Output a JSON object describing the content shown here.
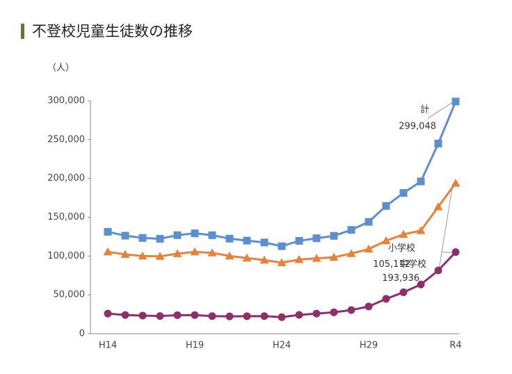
{
  "chart_data": {
    "type": "line",
    "title": "不登校児童生徒数の推移",
    "y_label": "（人）",
    "categories": [
      "H14",
      null,
      null,
      null,
      null,
      "H19",
      null,
      null,
      null,
      null,
      "H24",
      null,
      null,
      null,
      null,
      "H29",
      null,
      null,
      null,
      null,
      "R4"
    ],
    "series": [
      {
        "name": "計",
        "color": "#5b8fd0",
        "marker": "square",
        "end_label": "299,048",
        "values": [
          131252,
          126226,
          123358,
          122287,
          126894,
          129255,
          126805,
          122432,
          119891,
          117458,
          112689,
          119617,
          122897,
          125991,
          133683,
          144031,
          164528,
          181272,
          196127,
          244940,
          299048
        ]
      },
      {
        "name": "中学校",
        "color": "#e8823a",
        "marker": "triangle",
        "end_label": "193,936",
        "values": [
          105383,
          102149,
          100040,
          99578,
          103069,
          105328,
          104153,
          100105,
          97428,
          94836,
          91446,
          95442,
          97033,
          98408,
          103235,
          108999,
          119687,
          127922,
          132777,
          163442,
          193936
        ]
      },
      {
        "name": "小学校",
        "color": "#8e2f6b",
        "marker": "circle",
        "end_label": "105,112",
        "values": [
          25869,
          24077,
          23318,
          22709,
          23825,
          23927,
          22652,
          22327,
          22463,
          22622,
          21243,
          24175,
          25864,
          27583,
          30448,
          35032,
          44841,
          53350,
          63350,
          81498,
          105112
        ]
      }
    ],
    "ylim": [
      0,
      300000
    ],
    "yticks": [
      0,
      {
        "value": 50000,
        "label": "50,000"
      },
      {
        "value": 100000,
        "label": "100,000"
      },
      {
        "value": 150000,
        "label": "150,000"
      },
      {
        "value": 200000,
        "label": "200,000"
      },
      {
        "value": 250000,
        "label": "250,000"
      },
      {
        "value": 300000,
        "label": "300,000"
      }
    ],
    "grid": false
  }
}
